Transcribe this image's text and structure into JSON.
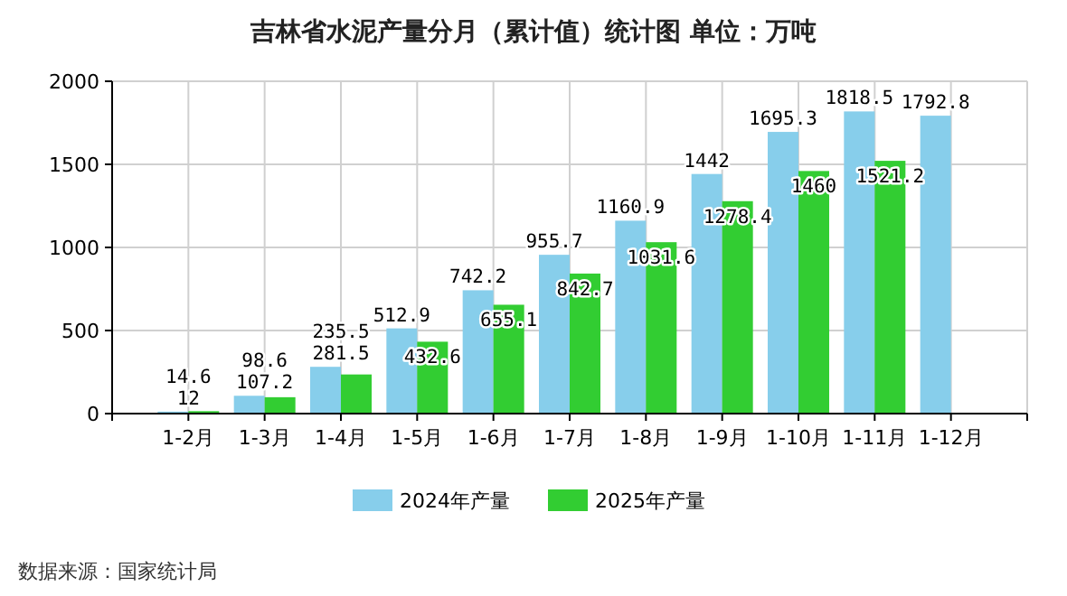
{
  "chart_data": {
    "type": "bar",
    "title": "吉林省水泥产量分月（累计值）统计图 单位：万吨",
    "categories": [
      "1-2月",
      "1-3月",
      "1-4月",
      "1-5月",
      "1-6月",
      "1-7月",
      "1-8月",
      "1-9月",
      "1-10月",
      "1-11月",
      "1-12月"
    ],
    "series": [
      {
        "name": "2024年产量",
        "color": "#87ceeb",
        "values": [
          12,
          107.2,
          281.5,
          512.9,
          742.2,
          955.7,
          1160.9,
          1442,
          1695.3,
          1818.5,
          1792.8
        ]
      },
      {
        "name": "2025年产量",
        "color": "#32cd32",
        "values": [
          14.6,
          98.6,
          235.5,
          432.6,
          655.1,
          842.7,
          1031.6,
          1278.4,
          1460,
          1521.2,
          null
        ]
      }
    ],
    "ylim": [
      0,
      2000
    ],
    "yticks": [
      0,
      500,
      1000,
      1500,
      2000
    ],
    "grid": true,
    "legend": "bottom",
    "data_labels": true,
    "annotations": [
      "数据来源：国家统计局"
    ]
  }
}
